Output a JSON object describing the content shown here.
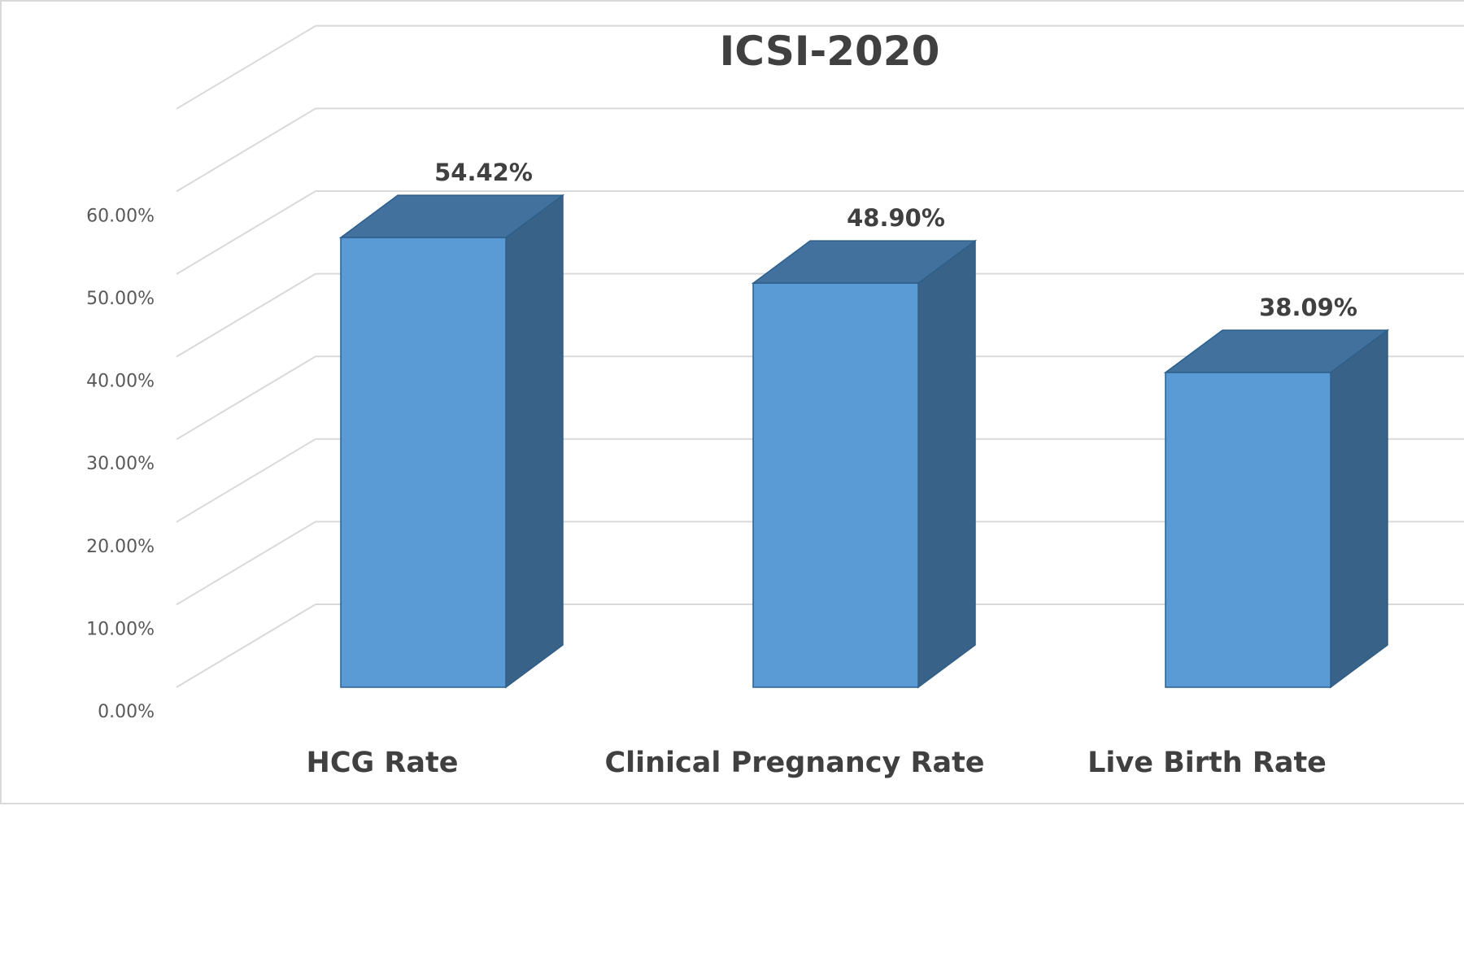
{
  "chart_data": {
    "type": "bar",
    "title": "ICSI-2020",
    "categories": [
      "HCG Rate",
      "Clinical Pregnancy Rate",
      "Live Birth Rate"
    ],
    "values": [
      54.42,
      48.9,
      38.09
    ],
    "data_labels": [
      "54.42%",
      "48.90%",
      "38.09%"
    ],
    "y_ticks": [
      0,
      10,
      20,
      30,
      40,
      50,
      60
    ],
    "y_tick_labels": [
      "0.00%",
      "10.00%",
      "20.00%",
      "30.00%",
      "40.00%",
      "50.00%",
      "60.00%"
    ],
    "ylim": [
      0,
      70
    ],
    "xlabel": "",
    "ylabel": "",
    "grid": true,
    "style": "3d-column",
    "colors": {
      "bar_front": "#5b9bd5",
      "bar_top": "#41719c",
      "bar_side": "#386287",
      "bar_edge": "#2e5f8a",
      "gridline": "#d9d9d9",
      "frame": "#d9d9d9"
    }
  }
}
